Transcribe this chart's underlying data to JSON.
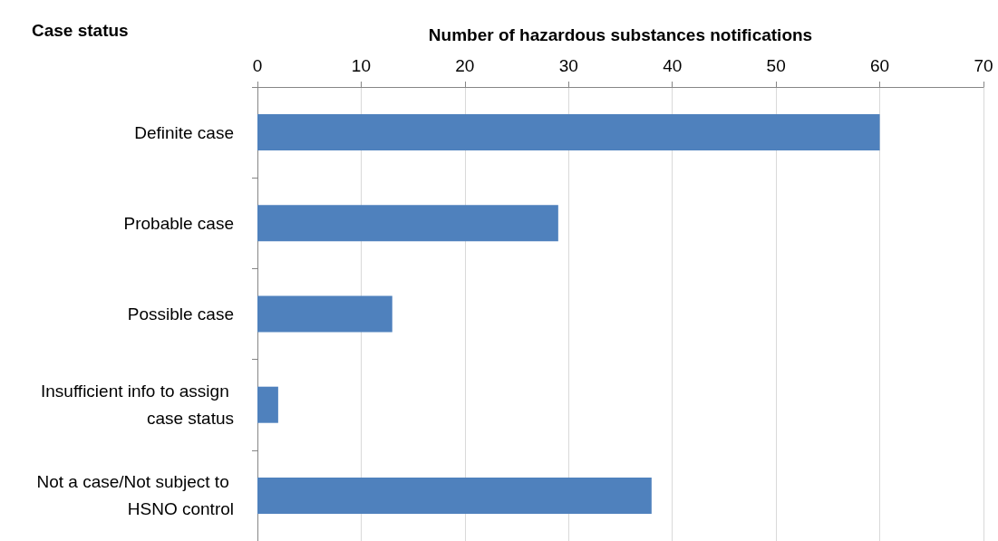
{
  "chart_data": {
    "type": "bar",
    "orientation": "horizontal",
    "xlabel": "Number of hazardous substances notifications",
    "ylabel": "Case status",
    "categories": [
      "Definite case",
      "Probable case",
      "Possible case",
      "Insufficient info to assign case status",
      "Not a case/Not subject to HSNO control"
    ],
    "values": [
      60,
      29,
      13,
      2,
      38
    ],
    "color": "#4f81bd",
    "xlim": [
      0,
      70
    ],
    "xticks": [
      0,
      10,
      20,
      30,
      40,
      50,
      60,
      70
    ],
    "grid": "x"
  }
}
